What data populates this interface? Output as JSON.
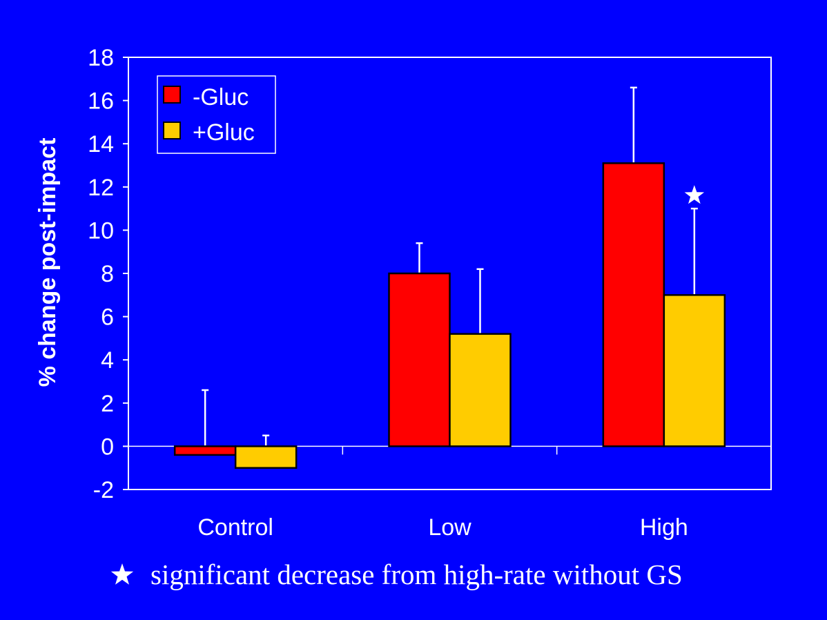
{
  "chart_data": {
    "type": "bar",
    "categories": [
      "Control",
      "Low",
      "High"
    ],
    "series": [
      {
        "name": "-Gluc",
        "color": "#FF0000",
        "values": [
          -0.4,
          8.0,
          13.1
        ],
        "error_upper": [
          2.6,
          9.4,
          16.6
        ]
      },
      {
        "name": "+Gluc",
        "color": "#FFCC00",
        "values": [
          -1.0,
          5.2,
          7.0
        ],
        "error_upper": [
          0.5,
          8.2,
          11.0
        ]
      }
    ],
    "ylabel": "% change post-impact",
    "xlabel": "",
    "ylim": [
      -2,
      18
    ],
    "yticks": [
      -2,
      0,
      2,
      4,
      6,
      8,
      10,
      12,
      14,
      16,
      18
    ],
    "legend_position": "top-left",
    "significance_marker": {
      "category": "High",
      "series": "+Gluc",
      "symbol": "star"
    },
    "footnote": "significant decrease from high-rate without GS",
    "background": "#0000FF"
  }
}
